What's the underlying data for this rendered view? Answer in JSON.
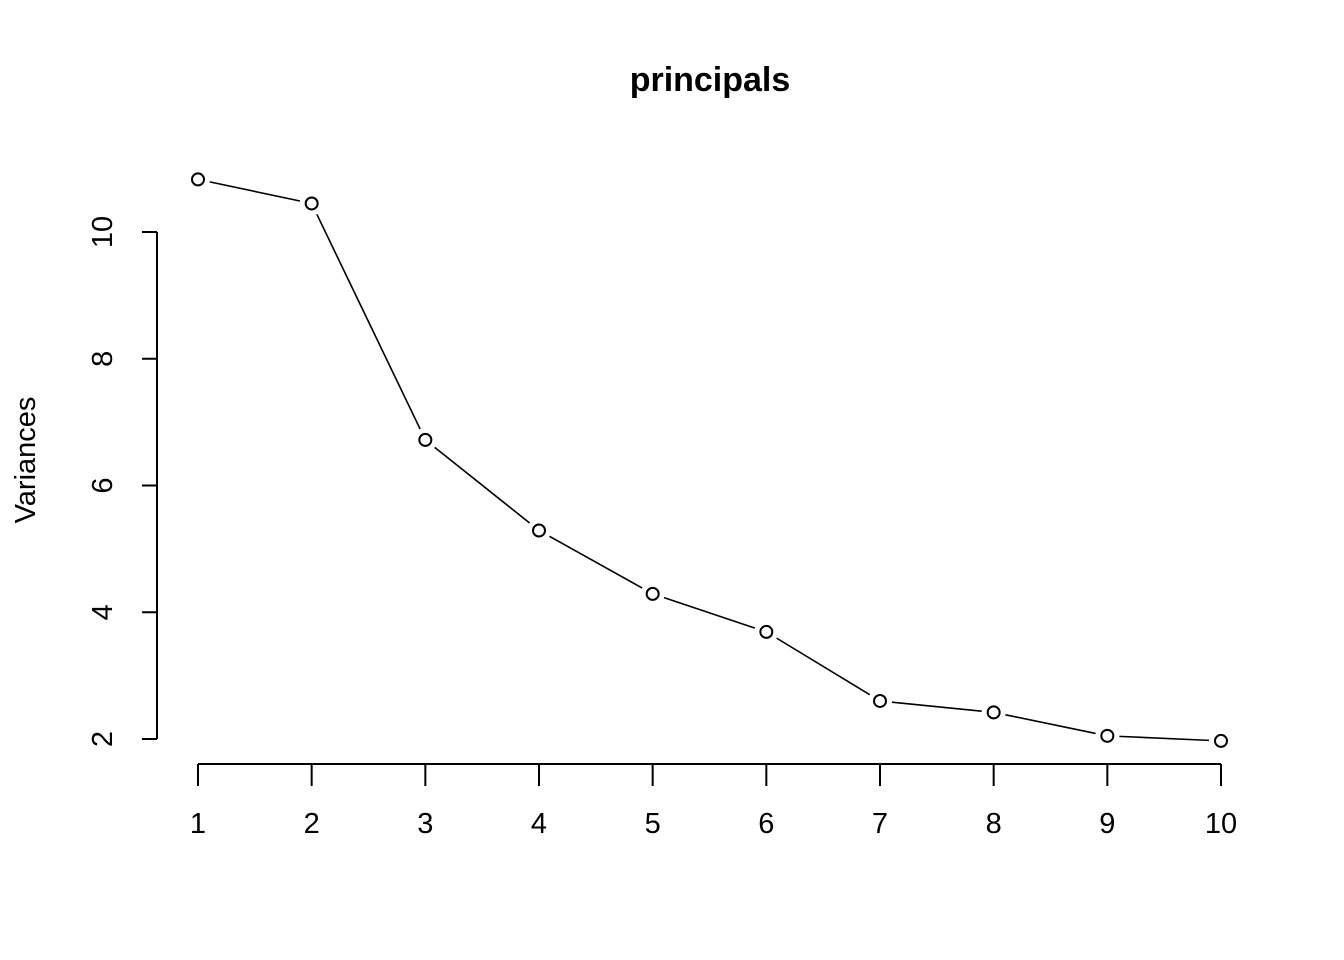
{
  "chart_data": {
    "type": "line",
    "title": "principals",
    "xlabel": "",
    "ylabel": "Variances",
    "x": [
      1,
      2,
      3,
      4,
      5,
      6,
      7,
      8,
      9,
      10
    ],
    "values": [
      10.83,
      10.45,
      6.72,
      5.29,
      4.29,
      3.69,
      2.6,
      2.42,
      2.05,
      1.97
    ],
    "xticks": [
      1,
      2,
      3,
      4,
      5,
      6,
      7,
      8,
      9,
      10
    ],
    "yticks": [
      2,
      4,
      6,
      8,
      10
    ],
    "ylim": [
      1.5,
      11
    ],
    "grid": false,
    "marker": "open-circle",
    "colors": {
      "line": "#000000",
      "marker_fill": "#ffffff",
      "background": "#ffffff"
    }
  }
}
